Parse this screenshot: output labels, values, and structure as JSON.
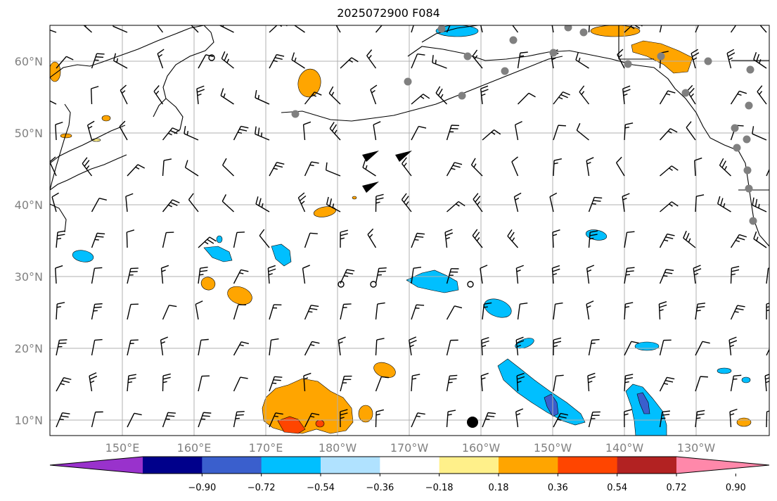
{
  "title": "2025072900 F084",
  "map": {
    "lat_labels": [
      "60°N",
      "50°N",
      "40°N",
      "30°N",
      "20°N",
      "10°N"
    ],
    "lon_labels": [
      "150°E",
      "160°E",
      "170°E",
      "180°W",
      "170°W",
      "160°W",
      "150°W",
      "140°W",
      "130°W"
    ],
    "colors": {
      "coast": "#000000",
      "grid": "#b0b0b0",
      "barb": "#000000",
      "station": "#808080",
      "contour_line": "#000000"
    }
  },
  "colorbar": {
    "labels": [
      "−0.90",
      "−0.72",
      "−0.54",
      "−0.36",
      "−0.18",
      "0.18",
      "0.36",
      "0.54",
      "0.72",
      "0.90"
    ],
    "colors": [
      "#9932cc",
      "#00008b",
      "#3a5fcd",
      "#00bfff",
      "#b0e2ff",
      "#ffffff",
      "#fff08a",
      "#ffa500",
      "#ff4500",
      "#b22222",
      "#ff88aa"
    ]
  }
}
